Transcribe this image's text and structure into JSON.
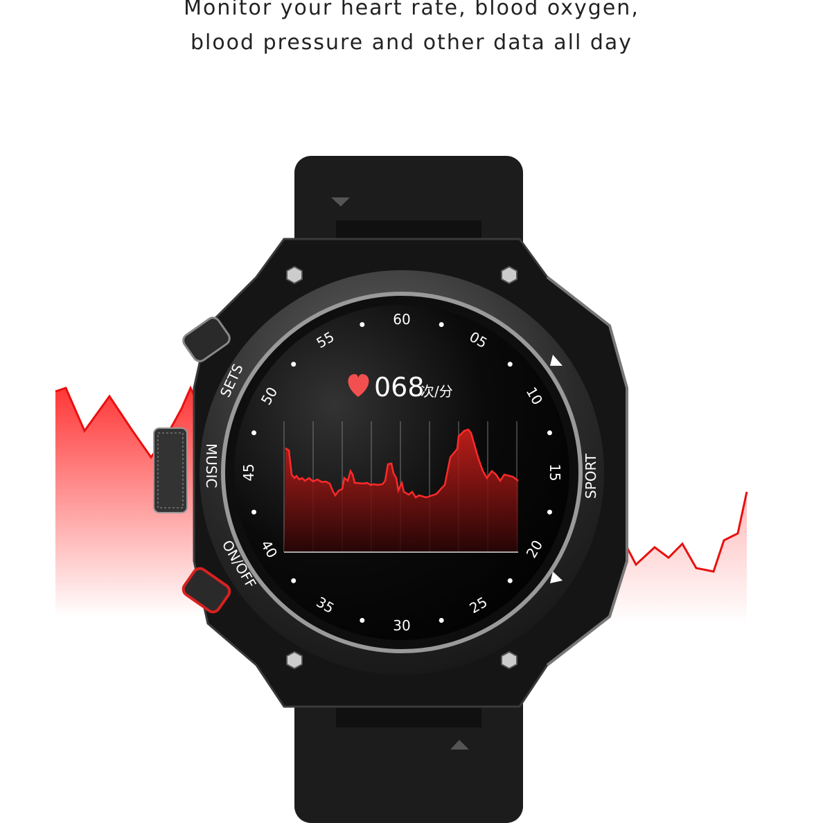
{
  "headline": {
    "line1": "Monitor your heart rate, blood oxygen,",
    "line2": "blood pressure and other data all day"
  },
  "watch": {
    "buttons": {
      "sets": "SETS",
      "music": "MUSIC",
      "power": "ON/OFF",
      "sport": "SPORT"
    },
    "bezel_numbers": [
      "60",
      "05",
      "10",
      "15",
      "20",
      "25",
      "30",
      "35",
      "40",
      "45",
      "50",
      "55"
    ],
    "screen": {
      "heart_icon": "heart-icon",
      "heart_rate": "068",
      "unit": "次/分"
    }
  },
  "colors": {
    "accent": "#ff2a2a",
    "screen": "#000000",
    "body": "#1a1a1a"
  }
}
